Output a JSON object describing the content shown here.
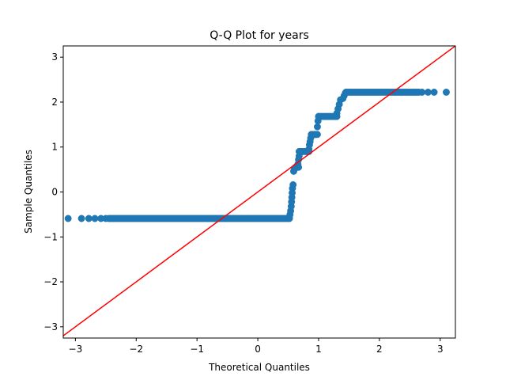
{
  "chart_data": {
    "type": "scatter",
    "title": "Q-Q Plot for years",
    "xlabel": "Theoretical Quantiles",
    "ylabel": "Sample Quantiles",
    "xlim": [
      -3.2,
      3.25
    ],
    "ylim": [
      -3.25,
      3.25
    ],
    "xticks": [
      -3,
      -2,
      -1,
      0,
      1,
      2,
      3
    ],
    "yticks": [
      -3,
      -2,
      -1,
      0,
      1,
      2,
      3
    ],
    "grid": false,
    "point_color": "#1f77b4",
    "line_color": "#ff0000",
    "reference_line": {
      "slope": 1,
      "intercept": 0
    },
    "segments": [
      {
        "x": [
          -2.45,
          0.52
        ],
        "y": -0.59
      },
      {
        "x": [
          0.62,
          0.67
        ],
        "y": 0.55
      },
      {
        "x": [
          0.68,
          0.84
        ],
        "y": 0.9
      },
      {
        "x": [
          0.9,
          0.98
        ],
        "y": 1.28
      },
      {
        "x": [
          1.0,
          1.3
        ],
        "y": 1.68
      },
      {
        "x": [
          1.45,
          2.65
        ],
        "y": 2.22
      }
    ],
    "points": [
      {
        "x": -3.12,
        "y": -0.59
      },
      {
        "x": -2.9,
        "y": -0.59
      },
      {
        "x": -2.78,
        "y": -0.59
      },
      {
        "x": -2.68,
        "y": -0.59
      },
      {
        "x": -2.58,
        "y": -0.59
      },
      {
        "x": -2.5,
        "y": -0.59
      },
      {
        "x": 0.52,
        "y": -0.57
      },
      {
        "x": 0.53,
        "y": -0.5
      },
      {
        "x": 0.54,
        "y": -0.42
      },
      {
        "x": 0.55,
        "y": -0.32
      },
      {
        "x": 0.555,
        "y": -0.22
      },
      {
        "x": 0.56,
        "y": -0.12
      },
      {
        "x": 0.565,
        "y": -0.02
      },
      {
        "x": 0.57,
        "y": 0.08
      },
      {
        "x": 0.58,
        "y": 0.16
      },
      {
        "x": 0.59,
        "y": 0.46
      },
      {
        "x": 0.6,
        "y": 0.5
      },
      {
        "x": 0.63,
        "y": 0.55
      },
      {
        "x": 0.66,
        "y": 0.62
      },
      {
        "x": 0.67,
        "y": 0.72
      },
      {
        "x": 0.68,
        "y": 0.8
      },
      {
        "x": 0.69,
        "y": 0.9
      },
      {
        "x": 0.84,
        "y": 0.95
      },
      {
        "x": 0.85,
        "y": 1.05
      },
      {
        "x": 0.86,
        "y": 1.12
      },
      {
        "x": 0.87,
        "y": 1.2
      },
      {
        "x": 0.88,
        "y": 1.28
      },
      {
        "x": 0.95,
        "y": 1.28
      },
      {
        "x": 0.98,
        "y": 1.45
      },
      {
        "x": 0.99,
        "y": 1.58
      },
      {
        "x": 1.0,
        "y": 1.68
      },
      {
        "x": 1.3,
        "y": 1.75
      },
      {
        "x": 1.32,
        "y": 1.85
      },
      {
        "x": 1.34,
        "y": 1.95
      },
      {
        "x": 1.36,
        "y": 2.05
      },
      {
        "x": 1.4,
        "y": 2.08
      },
      {
        "x": 1.42,
        "y": 2.14
      },
      {
        "x": 1.44,
        "y": 2.2
      },
      {
        "x": 2.7,
        "y": 2.22
      },
      {
        "x": 2.8,
        "y": 2.22
      },
      {
        "x": 2.9,
        "y": 2.22
      },
      {
        "x": 3.1,
        "y": 2.22
      }
    ]
  }
}
